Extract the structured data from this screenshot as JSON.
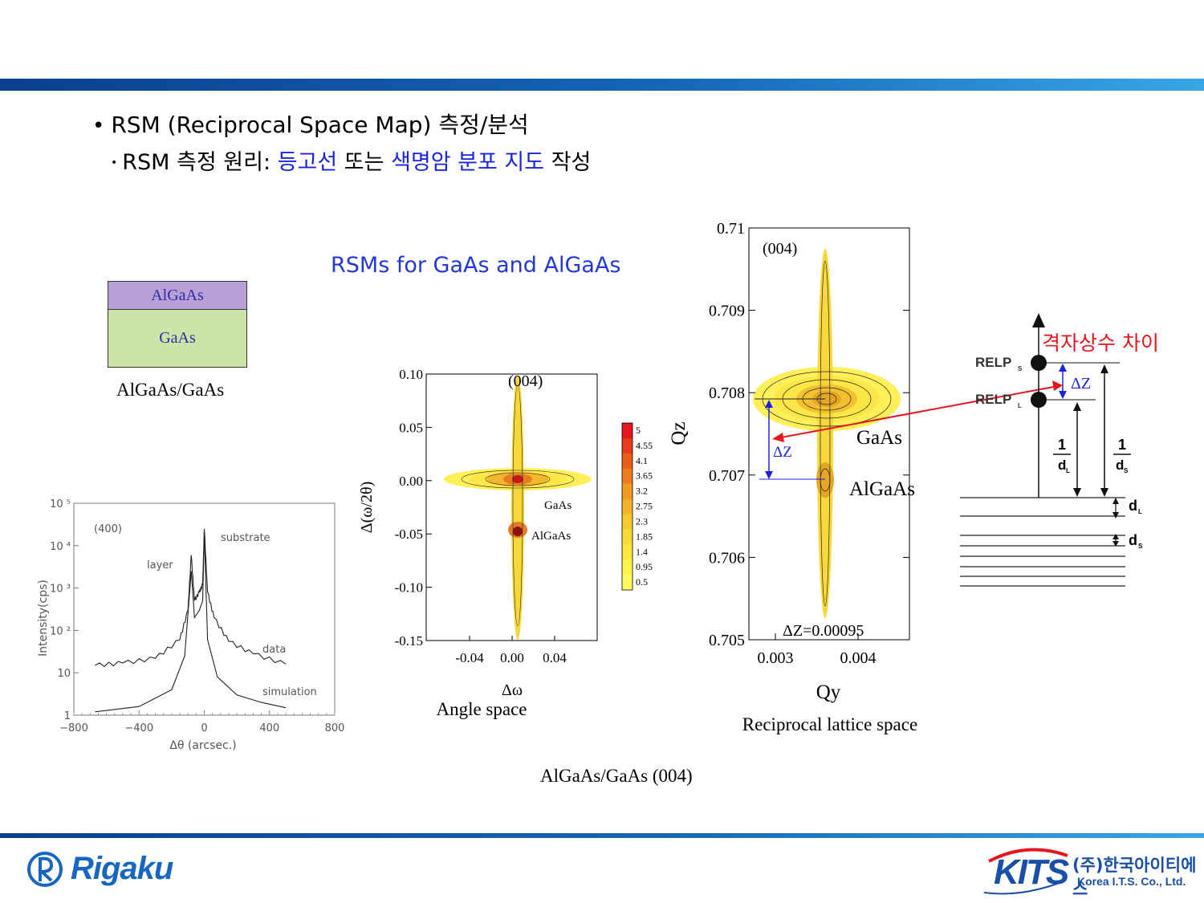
{
  "bullet1": "RSM (Reciprocal Space Map) 측정/분석",
  "bullet2": {
    "prefix": "RSM 측정 원리: ",
    "term1": "등고선",
    "mid": " 또는 ",
    "term2": "색명암 분포 지도",
    "suffix": " 작성"
  },
  "rsm_title": "RSMs for GaAs and AlGaAs",
  "stack": {
    "top": "AlGaAs",
    "bottom": "GaAs",
    "caption": "AlGaAs/GaAs"
  },
  "figure_caption": "AlGaAs/GaAs (004)",
  "colors": {
    "accent_blue": "#1a24e0",
    "red": "#e8141e",
    "bar_start": "#0b3f8f",
    "bar_end": "#38a6e6"
  },
  "chart_data": [
    {
      "type": "line",
      "annotation": "(400)",
      "xlabel": "Δθ (arcsec.)",
      "ylabel": "Intensity(cps)",
      "xlim": [
        -800,
        800
      ],
      "ylim": [
        1,
        100000
      ],
      "log_y": true,
      "x_ticks": [
        "−800",
        "−400",
        "0",
        "400",
        "800"
      ],
      "y_ticks": [
        "1",
        "10",
        "10 ²",
        "10 ³",
        "10 ⁴",
        "10 ⁵"
      ],
      "series": [
        {
          "name": "data",
          "points": [
            [
              -670,
              15
            ],
            [
              -500,
              17
            ],
            [
              -300,
              22
            ],
            [
              -150,
              60
            ],
            [
              -100,
              300
            ],
            [
              -80,
              6000
            ],
            [
              -60,
              500
            ],
            [
              -30,
              800
            ],
            [
              -10,
              1200
            ],
            [
              0,
              25000
            ],
            [
              20,
              800
            ],
            [
              60,
              200
            ],
            [
              150,
              55
            ],
            [
              300,
              28
            ],
            [
              500,
              16
            ]
          ]
        },
        {
          "name": "simulation",
          "points": [
            [
              -670,
              1.2
            ],
            [
              -400,
              1.6
            ],
            [
              -200,
              4
            ],
            [
              -120,
              25
            ],
            [
              -80,
              2500
            ],
            [
              -60,
              200
            ],
            [
              -30,
              300
            ],
            [
              -10,
              500
            ],
            [
              0,
              20000
            ],
            [
              20,
              60
            ],
            [
              80,
              8
            ],
            [
              200,
              3
            ],
            [
              350,
              2
            ],
            [
              500,
              1.5
            ]
          ]
        }
      ],
      "labels": {
        "layer": "layer",
        "substrate": "substrate",
        "data": "data",
        "simulation": "simulation"
      }
    },
    {
      "type": "heatmap",
      "annotation": "(004)",
      "xlabel": "Δω",
      "ylabel": "Δ(ω/2θ)",
      "caption": "Angle space",
      "x_ticks": [
        "-0.04",
        "0.00",
        "0.04"
      ],
      "y_ticks": [
        "0.10",
        "0.05",
        "0.00",
        "-0.05",
        "-0.10",
        "-0.15"
      ],
      "peaks": [
        {
          "label": "GaAs",
          "x": 0.0,
          "y": 0.0
        },
        {
          "label": "AlGaAs",
          "x": 0.0,
          "y": -0.05
        }
      ],
      "colorbar": [
        "5",
        "4.55",
        "4.1",
        "3.65",
        "3.2",
        "2.75",
        "2.3",
        "1.85",
        "1.4",
        "0.95",
        "0.5"
      ]
    },
    {
      "type": "heatmap",
      "annotation": "(004)",
      "xlabel": "Qy",
      "ylabel": "Qz",
      "caption": "Reciprocal lattice space",
      "x_ticks": [
        "0.003",
        "0.004"
      ],
      "y_ticks": [
        "0.71",
        "0.709",
        "0.708",
        "0.707",
        "0.706",
        "0.705"
      ],
      "peaks": [
        {
          "label": "GaAs",
          "qy": 0.0036,
          "qz": 0.7079
        },
        {
          "label": "AlGaAs",
          "qy": 0.0036,
          "qz": 0.7069
        }
      ],
      "delta_label": "ΔZ",
      "delta_text": "ΔZ=0.00095"
    }
  ],
  "schematic": {
    "relp_s": "RELP",
    "relp_s_sub": "S",
    "relp_l": "RELP",
    "relp_l_sub": "L",
    "delta_z": "ΔZ",
    "lattice_diff": "격자상수 차이",
    "one": "1",
    "d": "d",
    "sub_l": "L",
    "sub_s": "S"
  },
  "footer": {
    "rigaku": "Rigaku",
    "kits": "KITS",
    "kits_kr": "(주)한국아이티에스",
    "kits_en": "Korea I.T.S. Co., Ltd."
  }
}
